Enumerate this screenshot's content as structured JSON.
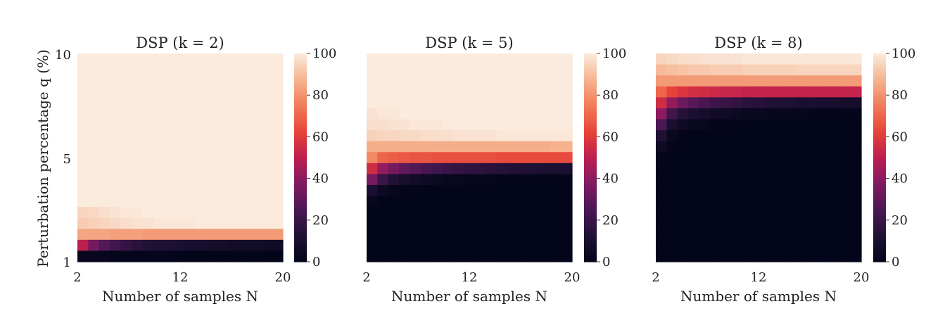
{
  "chart_data": [
    {
      "type": "heatmap",
      "title": "DSP (k = 2)",
      "xlabel": "Number of samples N",
      "ylabel": "Perturbation percentage q (%)",
      "x_ticks": [
        "2",
        "12",
        "20"
      ],
      "y_ticks": [
        "1",
        "5",
        "10"
      ],
      "x": [
        2,
        3,
        4,
        5,
        6,
        7,
        8,
        9,
        10,
        11,
        12,
        13,
        14,
        15,
        16,
        17,
        18,
        19,
        20
      ],
      "y": [
        10,
        9.5,
        9,
        8.5,
        8,
        7.5,
        7,
        6.5,
        6,
        5.5,
        5,
        4.5,
        4,
        3.5,
        3,
        2.5,
        2,
        1.5,
        1
      ],
      "colorbar": {
        "ticks": [
          "0",
          "20",
          "40",
          "60",
          "80",
          "100"
        ],
        "range": [
          0,
          100
        ]
      },
      "z": [
        [
          100,
          100,
          100,
          100,
          100,
          100,
          100,
          100,
          100,
          100,
          100,
          100,
          100,
          100,
          100,
          100,
          100,
          100,
          100
        ],
        [
          100,
          100,
          100,
          100,
          100,
          100,
          100,
          100,
          100,
          100,
          100,
          100,
          100,
          100,
          100,
          100,
          100,
          100,
          100
        ],
        [
          100,
          100,
          100,
          100,
          100,
          100,
          100,
          100,
          100,
          100,
          100,
          100,
          100,
          100,
          100,
          100,
          100,
          100,
          100
        ],
        [
          100,
          100,
          100,
          100,
          100,
          100,
          100,
          100,
          100,
          100,
          100,
          100,
          100,
          100,
          100,
          100,
          100,
          100,
          100
        ],
        [
          100,
          100,
          100,
          100,
          100,
          100,
          100,
          100,
          100,
          100,
          100,
          100,
          100,
          100,
          100,
          100,
          100,
          100,
          100
        ],
        [
          100,
          100,
          100,
          100,
          100,
          100,
          100,
          100,
          100,
          100,
          100,
          100,
          100,
          100,
          100,
          100,
          100,
          100,
          100
        ],
        [
          100,
          100,
          100,
          100,
          100,
          100,
          100,
          100,
          100,
          100,
          100,
          100,
          100,
          100,
          100,
          100,
          100,
          100,
          100
        ],
        [
          100,
          100,
          100,
          100,
          100,
          100,
          100,
          100,
          100,
          100,
          100,
          100,
          100,
          100,
          100,
          100,
          100,
          100,
          100
        ],
        [
          100,
          100,
          100,
          100,
          100,
          100,
          100,
          100,
          100,
          100,
          100,
          100,
          100,
          100,
          100,
          100,
          100,
          100,
          100
        ],
        [
          100,
          100,
          100,
          100,
          100,
          100,
          100,
          100,
          100,
          100,
          100,
          100,
          100,
          100,
          100,
          100,
          100,
          100,
          100
        ],
        [
          100,
          100,
          100,
          100,
          100,
          100,
          100,
          100,
          100,
          100,
          100,
          100,
          100,
          100,
          100,
          100,
          100,
          100,
          100
        ],
        [
          100,
          100,
          100,
          100,
          100,
          100,
          100,
          100,
          100,
          100,
          100,
          100,
          100,
          100,
          100,
          100,
          100,
          100,
          100
        ],
        [
          100,
          100,
          100,
          100,
          100,
          100,
          100,
          100,
          100,
          100,
          100,
          100,
          100,
          100,
          100,
          100,
          100,
          100,
          100
        ],
        [
          100,
          100,
          100,
          100,
          100,
          100,
          100,
          100,
          100,
          100,
          100,
          100,
          100,
          100,
          100,
          100,
          100,
          100,
          100
        ],
        [
          95,
          96,
          97,
          98,
          99,
          99,
          100,
          100,
          100,
          100,
          100,
          100,
          100,
          100,
          100,
          100,
          100,
          100,
          100
        ],
        [
          93,
          94,
          95,
          96,
          97,
          98,
          98,
          99,
          99,
          99,
          99,
          100,
          100,
          100,
          100,
          100,
          100,
          100,
          100
        ],
        [
          84,
          84,
          84,
          83,
          83,
          83,
          82,
          82,
          82,
          82,
          82,
          82,
          82,
          82,
          82,
          82,
          82,
          82,
          82
        ],
        [
          50,
          35,
          27,
          22,
          18,
          15,
          13,
          12,
          11,
          10,
          9,
          9,
          8,
          8,
          7,
          7,
          7,
          6,
          6
        ],
        [
          2,
          2,
          2,
          1,
          1,
          1,
          1,
          1,
          1,
          0,
          0,
          0,
          0,
          0,
          0,
          0,
          0,
          0,
          0
        ]
      ]
    },
    {
      "type": "heatmap",
      "title": "DSP (k = 5)",
      "xlabel": "Number of samples N",
      "ylabel": "",
      "x_ticks": [
        "2",
        "12",
        "20"
      ],
      "y_ticks": [],
      "x": [
        2,
        3,
        4,
        5,
        6,
        7,
        8,
        9,
        10,
        11,
        12,
        13,
        14,
        15,
        16,
        17,
        18,
        19,
        20
      ],
      "y": [
        10,
        9.5,
        9,
        8.5,
        8,
        7.5,
        7,
        6.5,
        6,
        5.5,
        5,
        4.5,
        4,
        3.5,
        3,
        2.5,
        2,
        1.5,
        1
      ],
      "colorbar": {
        "ticks": [
          "0",
          "20",
          "40",
          "60",
          "80",
          "100"
        ],
        "range": [
          0,
          100
        ]
      },
      "z": [
        [
          100,
          100,
          100,
          100,
          100,
          100,
          100,
          100,
          100,
          100,
          100,
          100,
          100,
          100,
          100,
          100,
          100,
          100,
          100
        ],
        [
          100,
          100,
          100,
          100,
          100,
          100,
          100,
          100,
          100,
          100,
          100,
          100,
          100,
          100,
          100,
          100,
          100,
          100,
          100
        ],
        [
          100,
          100,
          100,
          100,
          100,
          100,
          100,
          100,
          100,
          100,
          100,
          100,
          100,
          100,
          100,
          100,
          100,
          100,
          100
        ],
        [
          100,
          100,
          100,
          100,
          100,
          100,
          100,
          100,
          100,
          100,
          100,
          100,
          100,
          100,
          100,
          100,
          100,
          100,
          100
        ],
        [
          100,
          100,
          100,
          100,
          100,
          100,
          100,
          100,
          100,
          100,
          100,
          100,
          100,
          100,
          100,
          100,
          100,
          100,
          100
        ],
        [
          98,
          99,
          99,
          100,
          100,
          100,
          100,
          100,
          100,
          100,
          100,
          100,
          100,
          100,
          100,
          100,
          100,
          100,
          100
        ],
        [
          97,
          97,
          98,
          98,
          99,
          99,
          99,
          100,
          100,
          100,
          100,
          100,
          100,
          100,
          100,
          100,
          100,
          100,
          100
        ],
        [
          94,
          95,
          95,
          96,
          96,
          97,
          97,
          97,
          98,
          98,
          98,
          98,
          99,
          99,
          99,
          99,
          99,
          99,
          99
        ],
        [
          86,
          86,
          86,
          86,
          86,
          86,
          86,
          86,
          86,
          86,
          86,
          86,
          86,
          86,
          86,
          86,
          86,
          87,
          87
        ],
        [
          78,
          70,
          68,
          67,
          66,
          66,
          65,
          65,
          65,
          65,
          65,
          65,
          64,
          64,
          64,
          64,
          64,
          64,
          64
        ],
        [
          55,
          42,
          35,
          30,
          27,
          24,
          22,
          20,
          18,
          17,
          16,
          15,
          14,
          13,
          12,
          12,
          11,
          11,
          10
        ],
        [
          35,
          20,
          13,
          9,
          7,
          5,
          4,
          3,
          3,
          2,
          2,
          2,
          1,
          1,
          1,
          1,
          1,
          1,
          1
        ],
        [
          10,
          4,
          2,
          1,
          1,
          0,
          0,
          0,
          0,
          0,
          0,
          0,
          0,
          0,
          0,
          0,
          0,
          0,
          0
        ],
        [
          2,
          0,
          0,
          0,
          0,
          0,
          0,
          0,
          0,
          0,
          0,
          0,
          0,
          0,
          0,
          0,
          0,
          0,
          0
        ],
        [
          0,
          0,
          0,
          0,
          0,
          0,
          0,
          0,
          0,
          0,
          0,
          0,
          0,
          0,
          0,
          0,
          0,
          0,
          0
        ],
        [
          0,
          0,
          0,
          0,
          0,
          0,
          0,
          0,
          0,
          0,
          0,
          0,
          0,
          0,
          0,
          0,
          0,
          0,
          0
        ],
        [
          0,
          0,
          0,
          0,
          0,
          0,
          0,
          0,
          0,
          0,
          0,
          0,
          0,
          0,
          0,
          0,
          0,
          0,
          0
        ],
        [
          0,
          0,
          0,
          0,
          0,
          0,
          0,
          0,
          0,
          0,
          0,
          0,
          0,
          0,
          0,
          0,
          0,
          0,
          0
        ],
        [
          0,
          0,
          0,
          0,
          0,
          0,
          0,
          0,
          0,
          0,
          0,
          0,
          0,
          0,
          0,
          0,
          0,
          0,
          0
        ]
      ]
    },
    {
      "type": "heatmap",
      "title": "DSP (k = 8)",
      "xlabel": "Number of samples N",
      "ylabel": "",
      "x_ticks": [
        "2",
        "12",
        "20"
      ],
      "y_ticks": [],
      "x": [
        2,
        3,
        4,
        5,
        6,
        7,
        8,
        9,
        10,
        11,
        12,
        13,
        14,
        15,
        16,
        17,
        18,
        19,
        20
      ],
      "y": [
        10,
        9.5,
        9,
        8.5,
        8,
        7.5,
        7,
        6.5,
        6,
        5.5,
        5,
        4.5,
        4,
        3.5,
        3,
        2.5,
        2,
        1.5,
        1
      ],
      "colorbar": {
        "ticks": [
          "0",
          "20",
          "40",
          "60",
          "80",
          "100"
        ],
        "range": [
          0,
          100
        ]
      },
      "z": [
        [
          95,
          96,
          97,
          97,
          98,
          98,
          98,
          98,
          99,
          99,
          99,
          99,
          99,
          99,
          99,
          99,
          99,
          99,
          99
        ],
        [
          89,
          90,
          91,
          92,
          92,
          93,
          93,
          93,
          94,
          94,
          94,
          94,
          94,
          95,
          95,
          95,
          95,
          95,
          95
        ],
        [
          82,
          82,
          82,
          82,
          82,
          82,
          82,
          82,
          82,
          82,
          82,
          82,
          82,
          82,
          82,
          82,
          82,
          82,
          82
        ],
        [
          70,
          62,
          58,
          56,
          55,
          54,
          53,
          53,
          52,
          52,
          52,
          52,
          52,
          52,
          52,
          52,
          52,
          52,
          52
        ],
        [
          55,
          42,
          33,
          28,
          24,
          21,
          19,
          17,
          15,
          14,
          13,
          12,
          11,
          10,
          10,
          9,
          9,
          8,
          8
        ],
        [
          40,
          22,
          14,
          10,
          8,
          6,
          5,
          4,
          3,
          3,
          2,
          2,
          2,
          2,
          1,
          1,
          1,
          1,
          1
        ],
        [
          25,
          10,
          5,
          3,
          2,
          1,
          1,
          1,
          0,
          0,
          0,
          0,
          0,
          0,
          0,
          0,
          0,
          0,
          0
        ],
        [
          12,
          3,
          1,
          0,
          0,
          0,
          0,
          0,
          0,
          0,
          0,
          0,
          0,
          0,
          0,
          0,
          0,
          0,
          0
        ],
        [
          5,
          1,
          0,
          0,
          0,
          0,
          0,
          0,
          0,
          0,
          0,
          0,
          0,
          0,
          0,
          0,
          0,
          0,
          0
        ],
        [
          1,
          0,
          0,
          0,
          0,
          0,
          0,
          0,
          0,
          0,
          0,
          0,
          0,
          0,
          0,
          0,
          0,
          0,
          0
        ],
        [
          0,
          0,
          0,
          0,
          0,
          0,
          0,
          0,
          0,
          0,
          0,
          0,
          0,
          0,
          0,
          0,
          0,
          0,
          0
        ],
        [
          0,
          0,
          0,
          0,
          0,
          0,
          0,
          0,
          0,
          0,
          0,
          0,
          0,
          0,
          0,
          0,
          0,
          0,
          0
        ],
        [
          0,
          0,
          0,
          0,
          0,
          0,
          0,
          0,
          0,
          0,
          0,
          0,
          0,
          0,
          0,
          0,
          0,
          0,
          0
        ],
        [
          0,
          0,
          0,
          0,
          0,
          0,
          0,
          0,
          0,
          0,
          0,
          0,
          0,
          0,
          0,
          0,
          0,
          0,
          0
        ],
        [
          0,
          0,
          0,
          0,
          0,
          0,
          0,
          0,
          0,
          0,
          0,
          0,
          0,
          0,
          0,
          0,
          0,
          0,
          0
        ],
        [
          0,
          0,
          0,
          0,
          0,
          0,
          0,
          0,
          0,
          0,
          0,
          0,
          0,
          0,
          0,
          0,
          0,
          0,
          0
        ],
        [
          0,
          0,
          0,
          0,
          0,
          0,
          0,
          0,
          0,
          0,
          0,
          0,
          0,
          0,
          0,
          0,
          0,
          0,
          0
        ],
        [
          0,
          0,
          0,
          0,
          0,
          0,
          0,
          0,
          0,
          0,
          0,
          0,
          0,
          0,
          0,
          0,
          0,
          0,
          0
        ],
        [
          0,
          0,
          0,
          0,
          0,
          0,
          0,
          0,
          0,
          0,
          0,
          0,
          0,
          0,
          0,
          0,
          0,
          0,
          0
        ]
      ]
    }
  ]
}
